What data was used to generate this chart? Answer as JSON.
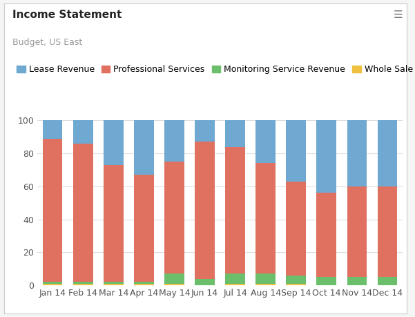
{
  "title": "Income Statement",
  "subtitle": "Budget, US East",
  "categories": [
    "Jan 14",
    "Feb 14",
    "Mar 14",
    "Apr 14",
    "May 14",
    "Jun 14",
    "Jul 14",
    "Aug 14",
    "Sep 14",
    "Oct 14",
    "Nov 14",
    "Dec 14"
  ],
  "series": [
    {
      "name": "Whole Sale",
      "color": "#f0c040",
      "values": [
        1,
        1,
        1,
        1,
        1,
        0,
        1,
        1,
        1,
        0,
        0,
        0
      ]
    },
    {
      "name": "Monitoring Service Revenue",
      "color": "#6bbf6b",
      "values": [
        1,
        1,
        1,
        1,
        6,
        4,
        6,
        6,
        5,
        5,
        5,
        5
      ]
    },
    {
      "name": "Professional Services",
      "color": "#e07060",
      "values": [
        87,
        84,
        71,
        65,
        68,
        83,
        77,
        67,
        57,
        51,
        55,
        55
      ]
    },
    {
      "name": "Lease Revenue",
      "color": "#6fa8d0",
      "values": [
        11,
        14,
        27,
        33,
        25,
        13,
        16,
        26,
        37,
        44,
        40,
        40
      ]
    }
  ],
  "ylim": [
    0,
    100
  ],
  "yticks": [
    0,
    20,
    40,
    60,
    80,
    100
  ],
  "background_color": "#f5f5f5",
  "plot_bg_color": "#ffffff",
  "grid_color": "#dddddd",
  "title_fontsize": 11,
  "subtitle_fontsize": 9,
  "axis_fontsize": 9,
  "legend_fontsize": 9,
  "bar_width": 0.65,
  "figsize": [
    6.01,
    4.59
  ],
  "dpi": 100
}
